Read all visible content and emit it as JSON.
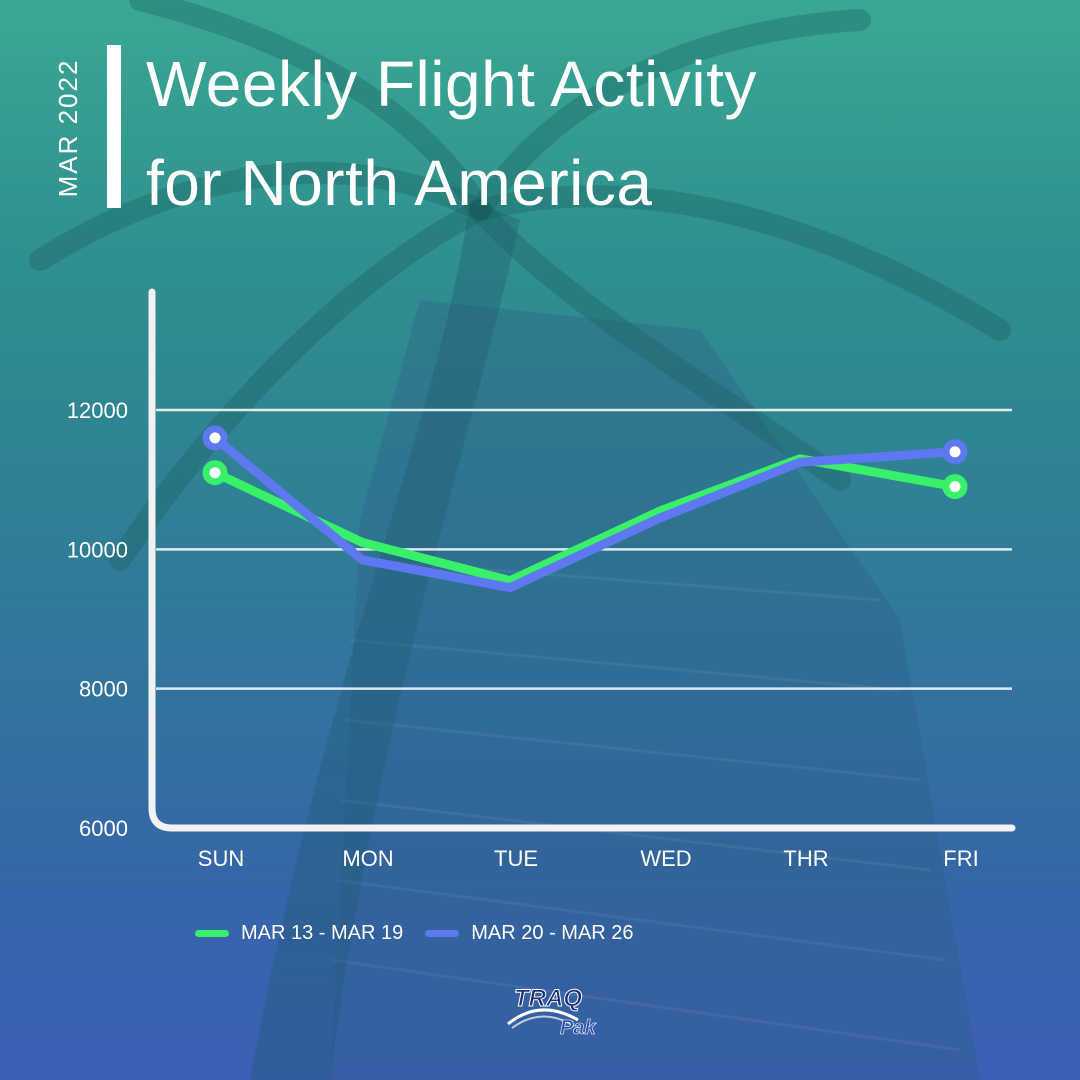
{
  "header": {
    "date_label": "MAR 2022",
    "title_line1": "Weekly Flight Activity",
    "title_line2": "for North America"
  },
  "logo": {
    "text_top": "TRAQ",
    "text_bottom": "Pak"
  },
  "colors": {
    "series1": "#38f06a",
    "series2": "#5d78f0",
    "axis": "#f2f2f2",
    "grid": "#ffffff"
  },
  "chart_data": {
    "type": "line",
    "categories": [
      "SUN",
      "MON",
      "TUE",
      "WED",
      "THR",
      "FRI"
    ],
    "y_ticks": [
      "6000",
      "8000",
      "10000",
      "12000"
    ],
    "ylim": [
      6000,
      13700
    ],
    "grid": true,
    "legend_position": "bottom-left",
    "series": [
      {
        "name": "MAR 13 - MAR 19",
        "values": [
          11100,
          10100,
          9550,
          10550,
          11300,
          10900
        ]
      },
      {
        "name": "MAR 20 - MAR 26",
        "values": [
          11600,
          9850,
          9450,
          10450,
          11250,
          11400
        ]
      }
    ]
  }
}
